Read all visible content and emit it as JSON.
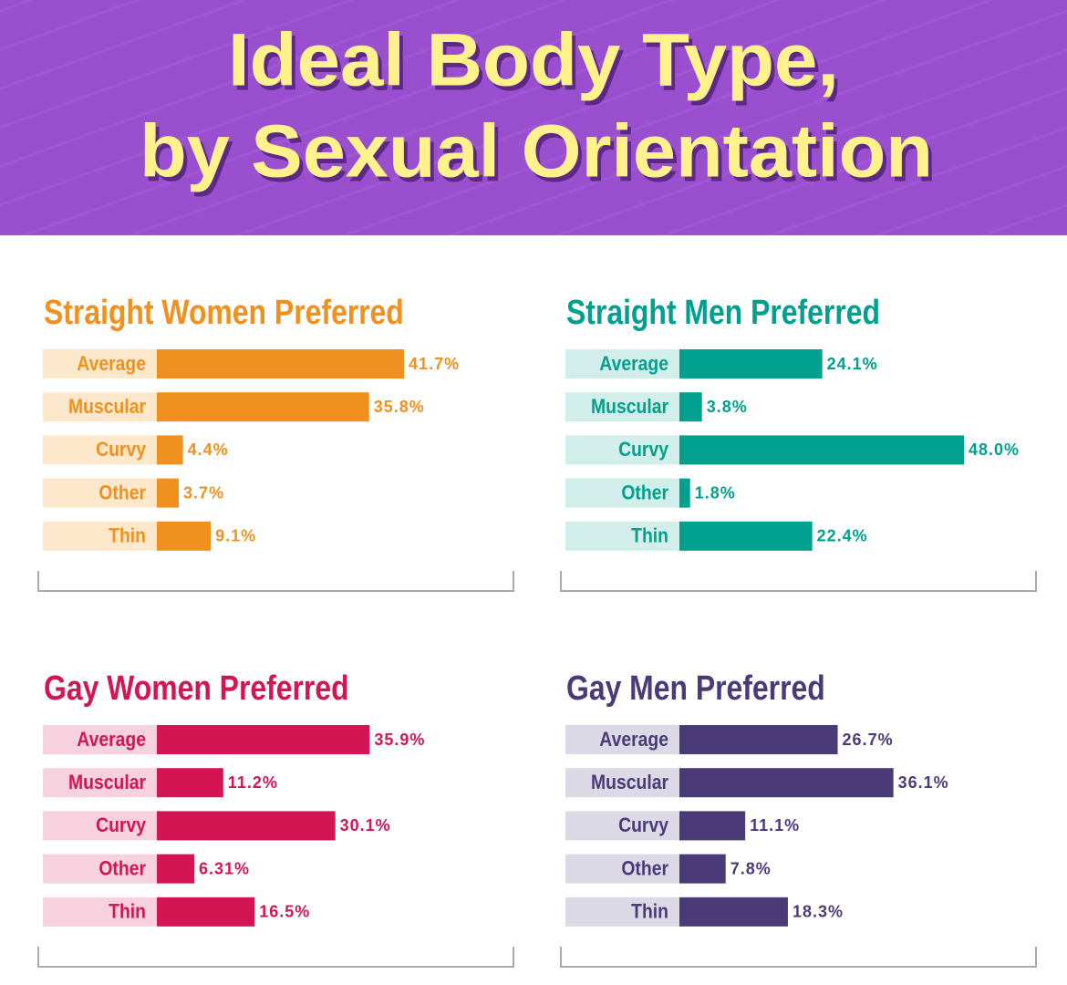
{
  "title": [
    "Ideal Body Type,",
    "by Sexual Orientation"
  ],
  "chart_data": [
    {
      "type": "bar",
      "title": "Straight Women Preferred",
      "color": "#f0901e",
      "label_background": "#fde8cc",
      "categories": [
        "Average",
        "Muscular",
        "Curvy",
        "Other",
        "Thin"
      ],
      "values": [
        41.7,
        35.8,
        4.4,
        3.7,
        9.1
      ],
      "value_labels": [
        "41.7%",
        "35.8%",
        "4.4%",
        "3.7%",
        "9.1%"
      ]
    },
    {
      "type": "bar",
      "title": "Straight Men Preferred",
      "color": "#00a08e",
      "label_background": "#d2eeea",
      "categories": [
        "Average",
        "Muscular",
        "Curvy",
        "Other",
        "Thin"
      ],
      "values": [
        24.1,
        3.8,
        48.0,
        1.8,
        22.4
      ],
      "value_labels": [
        "24.1%",
        "3.8%",
        "48.0%",
        "1.8%",
        "22.4%"
      ]
    },
    {
      "type": "bar",
      "title": "Gay Women Preferred",
      "color": "#d31553",
      "label_background": "#f7d1dd",
      "categories": [
        "Average",
        "Muscular",
        "Curvy",
        "Other",
        "Thin"
      ],
      "values": [
        35.9,
        11.2,
        30.1,
        6.31,
        16.5
      ],
      "value_labels": [
        "35.9%",
        "11.2%",
        "30.1%",
        "6.31%",
        "16.5%"
      ]
    },
    {
      "type": "bar",
      "title": "Gay Men Preferred",
      "color": "#4a3a78",
      "label_background": "#dcd9e6",
      "categories": [
        "Average",
        "Muscular",
        "Curvy",
        "Other",
        "Thin"
      ],
      "values": [
        26.7,
        36.1,
        11.1,
        7.8,
        18.3
      ],
      "value_labels": [
        "26.7%",
        "36.1%",
        "11.1%",
        "7.8%",
        "18.3%"
      ]
    }
  ]
}
